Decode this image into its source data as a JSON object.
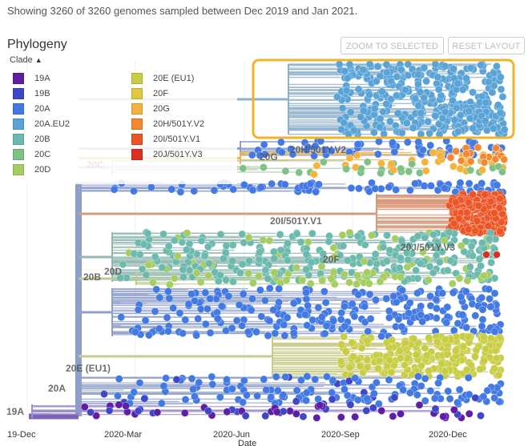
{
  "header": {
    "summary": "Showing 3260 of 3260 genomes sampled between Dec 2019 and Jan 2021."
  },
  "panel": {
    "title": "Phylogeny",
    "zoom_button": "ZOOM TO SELECTED",
    "reset_button": "RESET LAYOUT",
    "clade_toggle": "Clade"
  },
  "legend": [
    {
      "label": "19A",
      "color": "#5e1ea6"
    },
    {
      "label": "19B",
      "color": "#3f47c9"
    },
    {
      "label": "20A",
      "color": "#4379e3"
    },
    {
      "label": "20A.EU2",
      "color": "#5aa3d6"
    },
    {
      "label": "20B",
      "color": "#6cbaad"
    },
    {
      "label": "20C",
      "color": "#7fc288"
    },
    {
      "label": "20D",
      "color": "#a6cd62"
    },
    {
      "label": "20E (EU1)",
      "color": "#c8cd44"
    },
    {
      "label": "20F",
      "color": "#e1c640"
    },
    {
      "label": "20G",
      "color": "#f5b23c"
    },
    {
      "label": "20H/501Y.V2",
      "color": "#f6862f"
    },
    {
      "label": "20I/501Y.V1",
      "color": "#ec5526"
    },
    {
      "label": "20J/501Y.V3",
      "color": "#dc2f24"
    }
  ],
  "axis": {
    "ticks": [
      "19-Dec",
      "2020-Mar",
      "2020-Jun",
      "2020-Sep",
      "2020-Dec"
    ],
    "title": "Date"
  },
  "clade_labels": [
    "19A",
    "20A",
    "20E (EU1)",
    "20B",
    "20D",
    "20C",
    "20G",
    "20H/501Y.V2",
    "20I/501Y.V1",
    "20F",
    "20J/501Y.V3"
  ],
  "selection": {
    "color": "#f0b429"
  }
}
